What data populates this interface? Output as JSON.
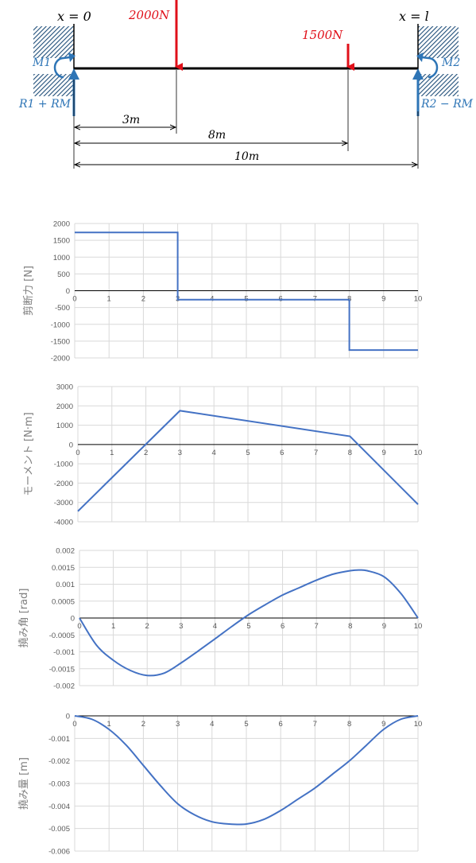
{
  "beam": {
    "left_label": "x = 0",
    "right_label": "x = l",
    "load1": "2000N",
    "load2": "1500N",
    "m1": "M1",
    "m2": "M2",
    "r_left": "R1 + RM",
    "r_right": "R2 − RM",
    "dim1": "3m",
    "dim2": "8m",
    "dim3": "10m",
    "colors": {
      "load": "#e0101a",
      "reaction": "#2e75b6",
      "beam": "#000000"
    }
  },
  "chart_data": [
    {
      "type": "line",
      "ylabel": "剪断力 [N]",
      "xlim": [
        0,
        10
      ],
      "ylim": [
        -2000,
        2000
      ],
      "yticks": [
        2000,
        1500,
        1000,
        500,
        0,
        -500,
        -1000,
        -1500,
        -2000
      ],
      "ytick_labels": [
        "2000",
        "1500",
        "1000",
        "500",
        "0",
        "-500",
        "-1000",
        "-1500",
        "-2000"
      ],
      "xticks": [
        0,
        1,
        2,
        3,
        4,
        5,
        6,
        7,
        8,
        9,
        10
      ],
      "xtick_labels": [
        "0",
        "1",
        "2",
        "3",
        "4",
        "5",
        "6",
        "7",
        "8",
        "9",
        "10"
      ],
      "grid": true,
      "series": [
        {
          "x": [
            0,
            3,
            3,
            8,
            8,
            10
          ],
          "y": [
            1735,
            1735,
            -265,
            -265,
            -1765,
            -1765
          ]
        }
      ]
    },
    {
      "type": "line",
      "ylabel": "モーメント [N·m]",
      "xlim": [
        0,
        10
      ],
      "ylim": [
        -4000,
        3000
      ],
      "yticks": [
        3000,
        2000,
        1000,
        0,
        -1000,
        -2000,
        -3000,
        -4000
      ],
      "ytick_labels": [
        "3000",
        "2000",
        "1000",
        "0",
        "-1000",
        "-2000",
        "-3000",
        "-4000"
      ],
      "xticks": [
        0,
        1,
        2,
        3,
        4,
        5,
        6,
        7,
        8,
        9,
        10
      ],
      "xtick_labels": [
        "0",
        "1",
        "2",
        "3",
        "4",
        "5",
        "6",
        "7",
        "8",
        "9",
        "10"
      ],
      "grid": true,
      "series": [
        {
          "x": [
            0,
            3,
            8,
            10
          ],
          "y": [
            -3455,
            1750,
            425,
            -3100
          ]
        }
      ]
    },
    {
      "type": "line",
      "ylabel": "撓み角 [rad]",
      "xlim": [
        0,
        10
      ],
      "ylim": [
        -0.002,
        0.002
      ],
      "yticks": [
        0.002,
        0.0015,
        0.001,
        0.0005,
        0,
        -0.0005,
        -0.001,
        -0.0015,
        -0.002
      ],
      "ytick_labels": [
        "0.002",
        "0.0015",
        "0.001",
        "0.0005",
        "0",
        "-0.0005",
        "-0.001",
        "-0.0015",
        "-0.002"
      ],
      "xticks": [
        0,
        1,
        2,
        3,
        4,
        5,
        6,
        7,
        8,
        9,
        10
      ],
      "xtick_labels": [
        "0",
        "1",
        "2",
        "3",
        "4",
        "5",
        "6",
        "7",
        "8",
        "9",
        "10"
      ],
      "grid": true,
      "series": [
        {
          "x": [
            0,
            0.5,
            1,
            1.5,
            2,
            2.5,
            3,
            3.5,
            4,
            4.5,
            5,
            5.5,
            6,
            6.5,
            7,
            7.5,
            8,
            8.25,
            8.5,
            9,
            9.5,
            10
          ],
          "y": [
            0,
            -0.0008,
            -0.00125,
            -0.00155,
            -0.0017,
            -0.00163,
            -0.00133,
            -0.00098,
            -0.00062,
            -0.00025,
            0.0001,
            0.0004,
            0.00068,
            0.0009,
            0.00112,
            0.0013,
            0.0014,
            0.00142,
            0.0014,
            0.00122,
            0.00072,
            0
          ]
        }
      ]
    },
    {
      "type": "line",
      "ylabel": "撓み量 [m]",
      "xlim": [
        0,
        10
      ],
      "ylim": [
        -0.006,
        0
      ],
      "yticks": [
        0,
        -0.001,
        -0.002,
        -0.003,
        -0.004,
        -0.005,
        -0.006
      ],
      "ytick_labels": [
        "0",
        "-0.001",
        "-0.002",
        "-0.003",
        "-0.004",
        "-0.005",
        "-0.006"
      ],
      "xticks": [
        0,
        1,
        2,
        3,
        4,
        5,
        6,
        7,
        8,
        9,
        10
      ],
      "xtick_labels": [
        "0",
        "1",
        "2",
        "3",
        "4",
        "5",
        "6",
        "7",
        "8",
        "9",
        "10"
      ],
      "grid": true,
      "series": [
        {
          "x": [
            0,
            0.5,
            1,
            1.5,
            2,
            2.5,
            3,
            3.5,
            4,
            4.5,
            5,
            5.5,
            6,
            6.5,
            7,
            7.5,
            8,
            8.5,
            9,
            9.5,
            10
          ],
          "y": [
            0,
            -0.00015,
            -0.0006,
            -0.0013,
            -0.0022,
            -0.0031,
            -0.0039,
            -0.0044,
            -0.0047,
            -0.0048,
            -0.0048,
            -0.0046,
            -0.0042,
            -0.0037,
            -0.0032,
            -0.0026,
            -0.002,
            -0.0013,
            -0.0006,
            -0.00015,
            0
          ]
        }
      ]
    }
  ]
}
